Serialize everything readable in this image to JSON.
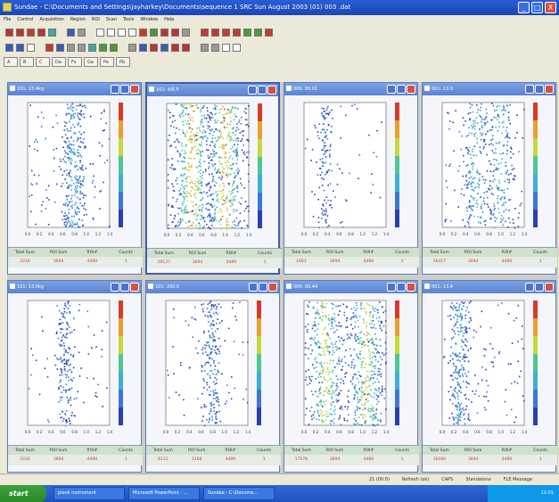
{
  "window": {
    "title": "Sundae - C:\\Documents and Settings\\jayharkey\\Documents\\sequence 1 SRC Sun August 2003 (01) 003 .dat",
    "controls": [
      "_",
      "□",
      "X"
    ]
  },
  "menu": [
    "File",
    "Control",
    "Acquisition",
    "Region",
    "ROI",
    "Scan",
    "Tools",
    "Window",
    "Help"
  ],
  "tabs": [
    "A",
    "B",
    "C",
    "Da",
    "Fs",
    "Ga",
    "Pa",
    "Pb"
  ],
  "panels": [
    {
      "title": "101: 13.4kg",
      "density": 0.28,
      "bands": [
        0.55
      ],
      "stats": {
        "labels": [
          "Total Sum",
          "ROI Sum",
          "ROI#",
          "Counts"
        ],
        "values": [
          "3316",
          "3694",
          "4489",
          "1"
        ]
      }
    },
    {
      "title": "101: 4/6.5",
      "density": 0.8,
      "bands": [
        0.3,
        0.7
      ],
      "active": true,
      "stats": {
        "labels": [
          "Total Sum",
          "ROI Sum",
          "ROI#",
          "Counts"
        ],
        "values": [
          "20137",
          "3694",
          "4489",
          "1"
        ]
      }
    },
    {
      "title": "006: 00.01",
      "density": 0.04,
      "bands": [
        0.25
      ],
      "stats": {
        "labels": [
          "Total Sum",
          "ROI Sum",
          "ROI#",
          "Counts"
        ],
        "values": [
          "1663",
          "3694",
          "4489",
          "1"
        ]
      }
    },
    {
      "title": "001: 13.0",
      "density": 0.35,
      "bands": [
        0.4,
        0.7
      ],
      "stats": {
        "labels": [
          "Total Sum",
          "ROI Sum",
          "ROI#",
          "Counts"
        ],
        "values": [
          "26317",
          "3694",
          "4489",
          "1"
        ]
      }
    },
    {
      "title": "101: 13.0kg",
      "density": 0.1,
      "bands": [
        0.45
      ],
      "stats": {
        "labels": [
          "Total Sum",
          "ROI Sum",
          "ROI#",
          "Counts"
        ],
        "values": [
          "3316",
          "3694",
          "4489",
          "1"
        ]
      }
    },
    {
      "title": "101: 200.0",
      "density": 0.14,
      "bands": [
        0.55
      ],
      "stats": {
        "labels": [
          "Total Sum",
          "ROI Sum",
          "ROI#",
          "Counts"
        ],
        "values": [
          "6131",
          "3168",
          "4489",
          "1"
        ]
      }
    },
    {
      "title": "006: 00.44",
      "density": 0.7,
      "bands": [
        0.25,
        0.75
      ],
      "stats": {
        "labels": [
          "Total Sum",
          "ROI Sum",
          "ROI#",
          "Counts"
        ],
        "values": [
          "17578",
          "3694",
          "4489",
          "1"
        ]
      }
    },
    {
      "title": "001: 13.4",
      "density": 0.22,
      "bands": [
        0.2
      ],
      "stats": {
        "labels": [
          "Total Sum",
          "ROI Sum",
          "ROI#",
          "Counts"
        ],
        "values": [
          "36180",
          "3694",
          "4489",
          "1"
        ]
      }
    }
  ],
  "axis_ticks": [
    "0.0",
    "0.2",
    "0.4",
    "0.6",
    "0.8",
    "1.0",
    "1.2",
    "1.4"
  ],
  "status": [
    "21 (00:0)",
    "Refresh (ok)",
    "CAPS",
    "Standalone",
    "FLE Message"
  ],
  "taskbar": {
    "start": "start",
    "tasks": [
      "plank instrument",
      "Microsoft PowerPoint - ...",
      "Sundae - C:\\Docume..."
    ],
    "clock": "12:01"
  },
  "colors": {
    "accent": "#2a5ed6",
    "panel_header": "#6a92de",
    "stat_value": "#d04020"
  }
}
